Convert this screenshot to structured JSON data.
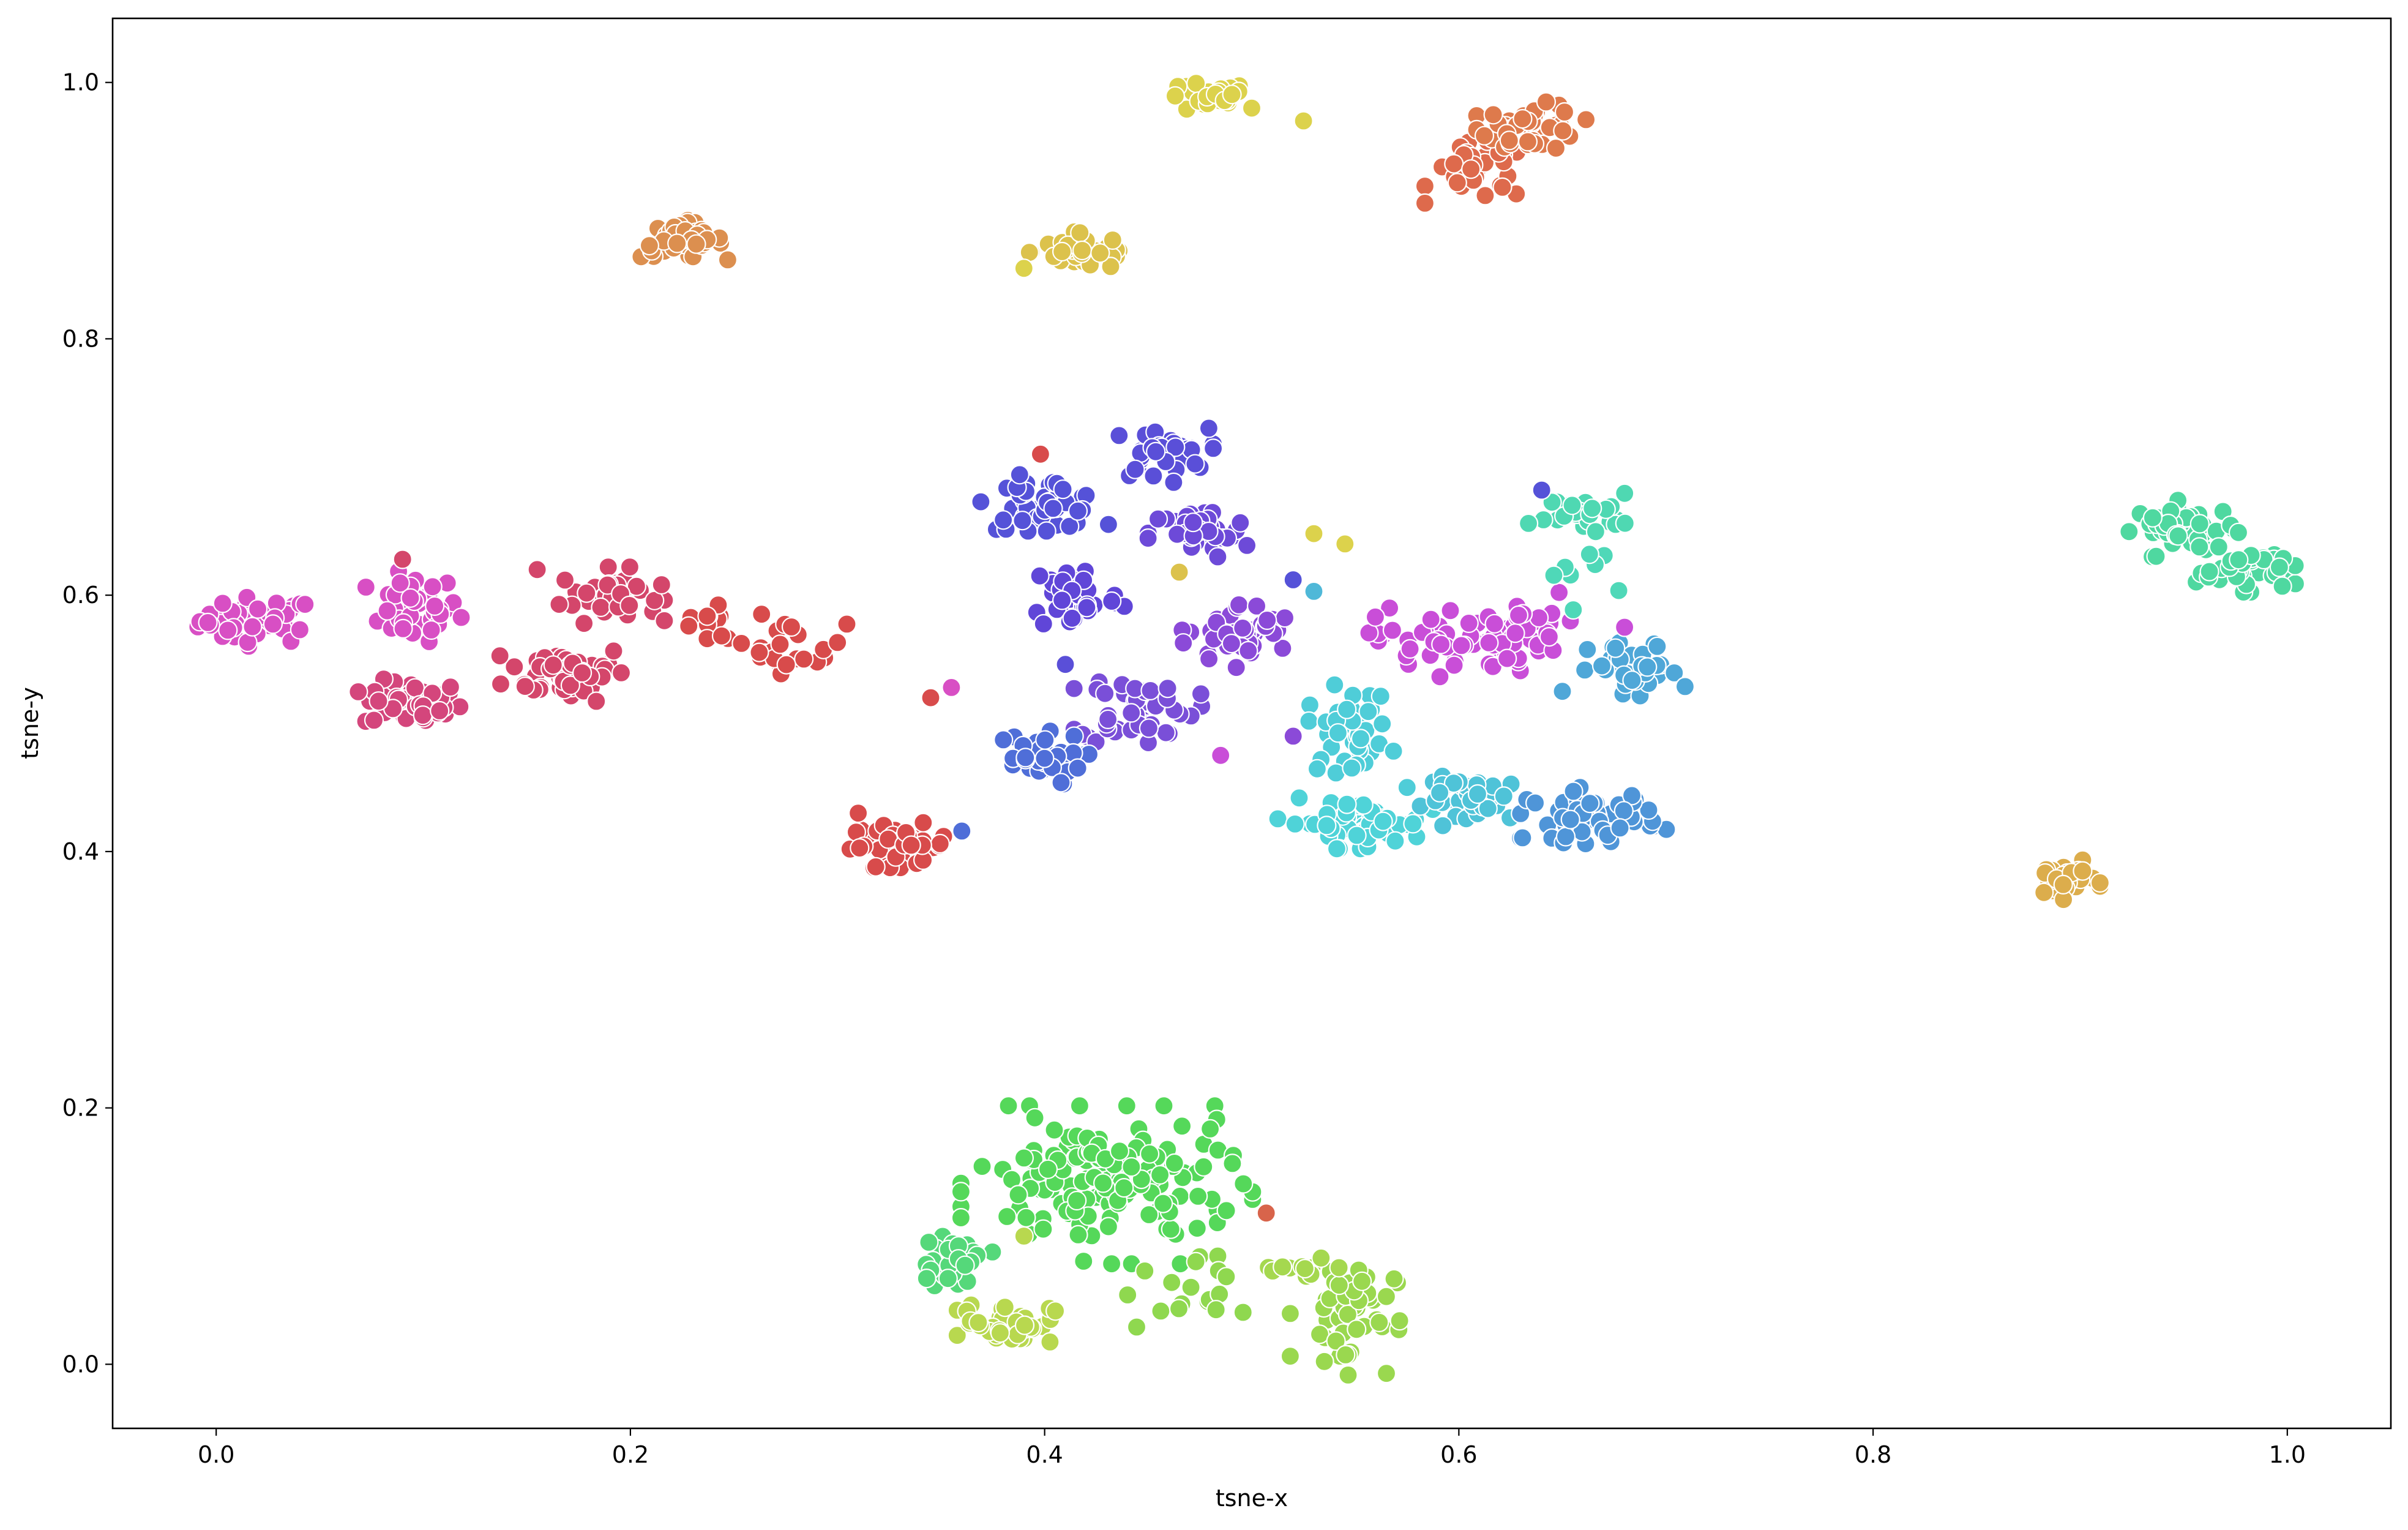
{
  "chart_data": {
    "type": "scatter",
    "xlabel": "tsne-x",
    "ylabel": "tsne-y",
    "xlim": [
      -0.05,
      1.05
    ],
    "ylim": [
      -0.05,
      1.05
    ],
    "xticks": [
      "0.0",
      "0.2",
      "0.4",
      "0.6",
      "0.8",
      "1.0"
    ],
    "xtick_values": [
      0.0,
      0.2,
      0.4,
      0.6,
      0.8,
      1.0
    ],
    "yticks": [
      "0.0",
      "0.2",
      "0.4",
      "0.6",
      "0.8",
      "1.0"
    ],
    "ytick_values": [
      0.0,
      0.2,
      0.4,
      0.6,
      0.8,
      1.0
    ],
    "grid": false,
    "legend": "none",
    "clusters": [
      {
        "color": "#d84fc4",
        "cx": 0.02,
        "cy": 0.58,
        "sx": 0.014,
        "sy": 0.009,
        "n": 45
      },
      {
        "color": "#d84fc4",
        "cx": 0.095,
        "cy": 0.59,
        "sx": 0.011,
        "sy": 0.013,
        "n": 42
      },
      {
        "color": "#d4467c",
        "cx": 0.095,
        "cy": 0.515,
        "sx": 0.012,
        "sy": 0.009,
        "n": 45
      },
      {
        "color": "#d4466b",
        "cx": 0.17,
        "cy": 0.54,
        "sx": 0.015,
        "sy": 0.011,
        "n": 50
      },
      {
        "color": "#d4466b",
        "cx": 0.19,
        "cy": 0.6,
        "sx": 0.012,
        "sy": 0.01,
        "n": 38
      },
      {
        "color": "#d84b4b",
        "cx": 0.24,
        "cy": 0.575,
        "sx": 0.014,
        "sy": 0.01,
        "n": 16
      },
      {
        "color": "#d84b4b",
        "cx": 0.28,
        "cy": 0.56,
        "sx": 0.012,
        "sy": 0.01,
        "n": 20
      },
      {
        "color": "#d84b4b",
        "cx": 0.33,
        "cy": 0.405,
        "sx": 0.012,
        "sy": 0.008,
        "n": 50
      },
      {
        "color": "#dc8f4f",
        "cx": 0.225,
        "cy": 0.877,
        "sx": 0.01,
        "sy": 0.007,
        "n": 38
      },
      {
        "color": "#dcc24c",
        "cx": 0.42,
        "cy": 0.868,
        "sx": 0.013,
        "sy": 0.007,
        "n": 40
      },
      {
        "color": "#dcd24c",
        "cx": 0.478,
        "cy": 0.988,
        "sx": 0.01,
        "sy": 0.006,
        "n": 28
      },
      {
        "color": "#de6a4c",
        "cx": 0.61,
        "cy": 0.93,
        "sx": 0.012,
        "sy": 0.011,
        "n": 35
      },
      {
        "color": "#de7a4c",
        "cx": 0.635,
        "cy": 0.965,
        "sx": 0.012,
        "sy": 0.009,
        "n": 45
      },
      {
        "color": "#5552d8",
        "cx": 0.4,
        "cy": 0.672,
        "sx": 0.014,
        "sy": 0.01,
        "n": 45
      },
      {
        "color": "#5a4fd8",
        "cx": 0.455,
        "cy": 0.71,
        "sx": 0.012,
        "sy": 0.01,
        "n": 36
      },
      {
        "color": "#6d4ad8",
        "cx": 0.475,
        "cy": 0.648,
        "sx": 0.012,
        "sy": 0.01,
        "n": 40
      },
      {
        "color": "#6046d8",
        "cx": 0.415,
        "cy": 0.6,
        "sx": 0.011,
        "sy": 0.014,
        "n": 40
      },
      {
        "color": "#8b4ad8",
        "cx": 0.495,
        "cy": 0.57,
        "sx": 0.013,
        "sy": 0.012,
        "n": 45
      },
      {
        "color": "#7a4fd8",
        "cx": 0.445,
        "cy": 0.512,
        "sx": 0.014,
        "sy": 0.014,
        "n": 45
      },
      {
        "color": "#4f6ed8",
        "cx": 0.395,
        "cy": 0.472,
        "sx": 0.012,
        "sy": 0.01,
        "n": 40
      },
      {
        "color": "#c94ed8",
        "cx": 0.6,
        "cy": 0.565,
        "sx": 0.02,
        "sy": 0.013,
        "n": 60
      },
      {
        "color": "#c94ed8",
        "cx": 0.64,
        "cy": 0.57,
        "sx": 0.01,
        "sy": 0.015,
        "n": 15
      },
      {
        "color": "#4fa7d8",
        "cx": 0.685,
        "cy": 0.54,
        "sx": 0.011,
        "sy": 0.012,
        "n": 38
      },
      {
        "color": "#4fd8b2",
        "cx": 0.66,
        "cy": 0.665,
        "sx": 0.012,
        "sy": 0.007,
        "n": 30
      },
      {
        "color": "#4fd8b8",
        "cx": 0.66,
        "cy": 0.615,
        "sx": 0.008,
        "sy": 0.012,
        "n": 8
      },
      {
        "color": "#4fcdd8",
        "cx": 0.547,
        "cy": 0.495,
        "sx": 0.01,
        "sy": 0.016,
        "n": 40
      },
      {
        "color": "#4fd3d8",
        "cx": 0.55,
        "cy": 0.422,
        "sx": 0.017,
        "sy": 0.009,
        "n": 55
      },
      {
        "color": "#4fc3d8",
        "cx": 0.61,
        "cy": 0.44,
        "sx": 0.013,
        "sy": 0.009,
        "n": 40
      },
      {
        "color": "#4f95d8",
        "cx": 0.665,
        "cy": 0.428,
        "sx": 0.016,
        "sy": 0.01,
        "n": 50
      },
      {
        "color": "#4fd8a0",
        "cx": 0.95,
        "cy": 0.652,
        "sx": 0.012,
        "sy": 0.01,
        "n": 45
      },
      {
        "color": "#4fd8a0",
        "cx": 0.98,
        "cy": 0.62,
        "sx": 0.012,
        "sy": 0.008,
        "n": 40
      },
      {
        "color": "#dcad4c",
        "cx": 0.892,
        "cy": 0.378,
        "sx": 0.008,
        "sy": 0.007,
        "n": 30
      },
      {
        "color": "#55d85a",
        "cx": 0.43,
        "cy": 0.14,
        "sx": 0.032,
        "sy": 0.028,
        "n": 150
      },
      {
        "color": "#55d87a",
        "cx": 0.355,
        "cy": 0.08,
        "sx": 0.009,
        "sy": 0.009,
        "n": 32
      },
      {
        "color": "#b8d84f",
        "cx": 0.382,
        "cy": 0.032,
        "sx": 0.011,
        "sy": 0.008,
        "n": 38
      },
      {
        "color": "#9ad84f",
        "cx": 0.545,
        "cy": 0.04,
        "sx": 0.012,
        "sy": 0.022,
        "n": 50
      },
      {
        "color": "#a5d84f",
        "cx": 0.52,
        "cy": 0.075,
        "sx": 0.012,
        "sy": 0.006,
        "n": 12
      },
      {
        "color": "#8fd84f",
        "cx": 0.465,
        "cy": 0.055,
        "sx": 0.014,
        "sy": 0.014,
        "n": 18
      }
    ],
    "outliers": [
      {
        "x": 0.39,
        "y": 0.855,
        "color": "#dcd24c"
      },
      {
        "x": 0.525,
        "y": 0.97,
        "color": "#dcd24c"
      },
      {
        "x": 0.5,
        "y": 0.98,
        "color": "#dcd24c"
      },
      {
        "x": 0.398,
        "y": 0.71,
        "color": "#d84b4b"
      },
      {
        "x": 0.53,
        "y": 0.648,
        "color": "#dcd24c"
      },
      {
        "x": 0.545,
        "y": 0.64,
        "color": "#dcd24c"
      },
      {
        "x": 0.53,
        "y": 0.603,
        "color": "#4fb8d8"
      },
      {
        "x": 0.465,
        "y": 0.618,
        "color": "#dcc24c"
      },
      {
        "x": 0.52,
        "y": 0.612,
        "color": "#5552d8"
      },
      {
        "x": 0.345,
        "y": 0.52,
        "color": "#d84b4b"
      },
      {
        "x": 0.355,
        "y": 0.528,
        "color": "#d84fc4"
      },
      {
        "x": 0.36,
        "y": 0.416,
        "color": "#4f6ed8"
      },
      {
        "x": 0.31,
        "y": 0.43,
        "color": "#d84b4b"
      },
      {
        "x": 0.41,
        "y": 0.546,
        "color": "#5a4fd8"
      },
      {
        "x": 0.485,
        "y": 0.475,
        "color": "#c94ed8"
      },
      {
        "x": 0.52,
        "y": 0.49,
        "color": "#8b4ad8"
      },
      {
        "x": 0.64,
        "y": 0.682,
        "color": "#5552d8"
      },
      {
        "x": 0.68,
        "y": 0.575,
        "color": "#c94ed8"
      },
      {
        "x": 0.507,
        "y": 0.118,
        "color": "#d8644b"
      },
      {
        "x": 0.39,
        "y": 0.1,
        "color": "#b8d84f"
      },
      {
        "x": 0.155,
        "y": 0.62,
        "color": "#d4466b"
      },
      {
        "x": 0.09,
        "y": 0.628,
        "color": "#d4466b"
      },
      {
        "x": 0.575,
        "y": 0.45,
        "color": "#4fcdd8"
      },
      {
        "x": 0.65,
        "y": 0.525,
        "color": "#4fa7d8"
      }
    ]
  }
}
